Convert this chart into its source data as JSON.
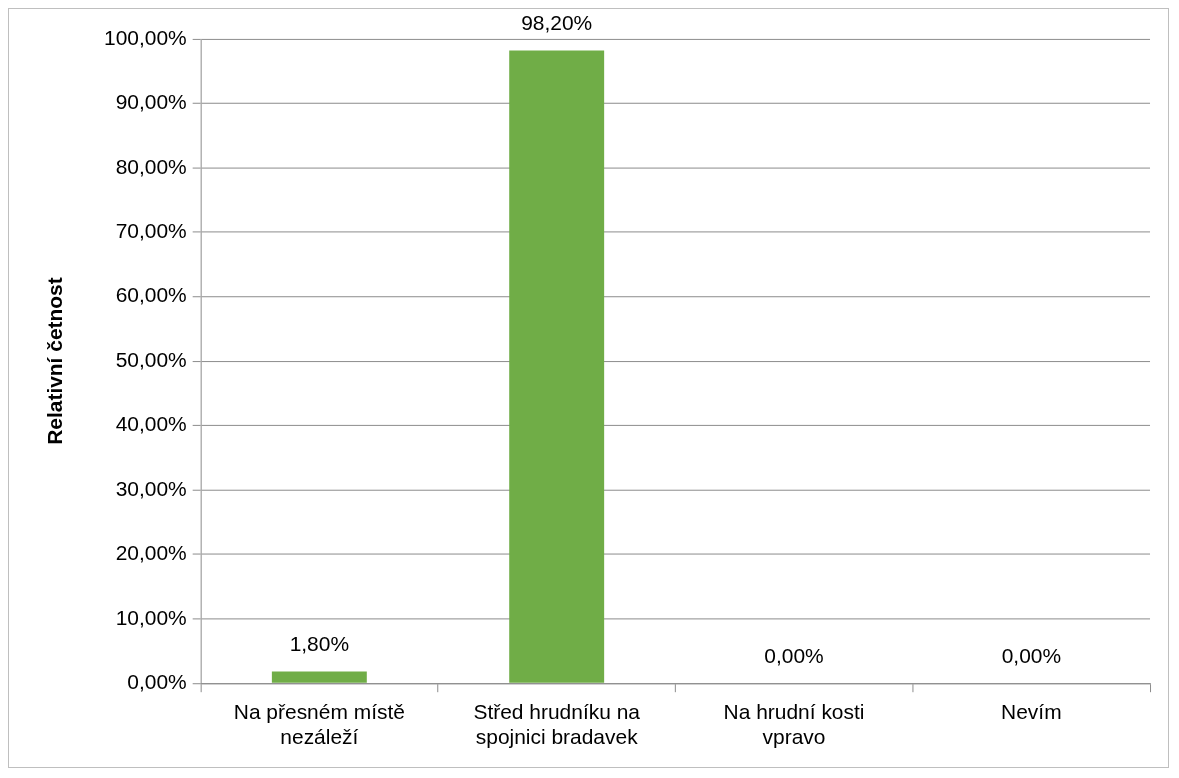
{
  "chart_data": {
    "type": "bar",
    "ylabel": "Relativní četnost",
    "categories": [
      "Na přesném místě nezáleží",
      "Střed hrudníku na spojnici bradavek",
      "Na hrudní kosti vpravo",
      "Nevím"
    ],
    "values": [
      1.8,
      98.2,
      0,
      0
    ],
    "value_labels": [
      "1,80%",
      "98,20%",
      "0,00%",
      "0,00%"
    ],
    "color": "#70ad47",
    "ylim": [
      0,
      100
    ],
    "yticks": [
      {
        "value": 0,
        "label": "0,00%"
      },
      {
        "value": 10,
        "label": "10,00%"
      },
      {
        "value": 20,
        "label": "20,00%"
      },
      {
        "value": 30,
        "label": "30,00%"
      },
      {
        "value": 40,
        "label": "40,00%"
      },
      {
        "value": 50,
        "label": "50,00%"
      },
      {
        "value": 60,
        "label": "60,00%"
      },
      {
        "value": 70,
        "label": "70,00%"
      },
      {
        "value": 80,
        "label": "80,00%"
      },
      {
        "value": 90,
        "label": "90,00%"
      },
      {
        "value": 100,
        "label": "100,00%"
      }
    ],
    "grid": "y"
  }
}
